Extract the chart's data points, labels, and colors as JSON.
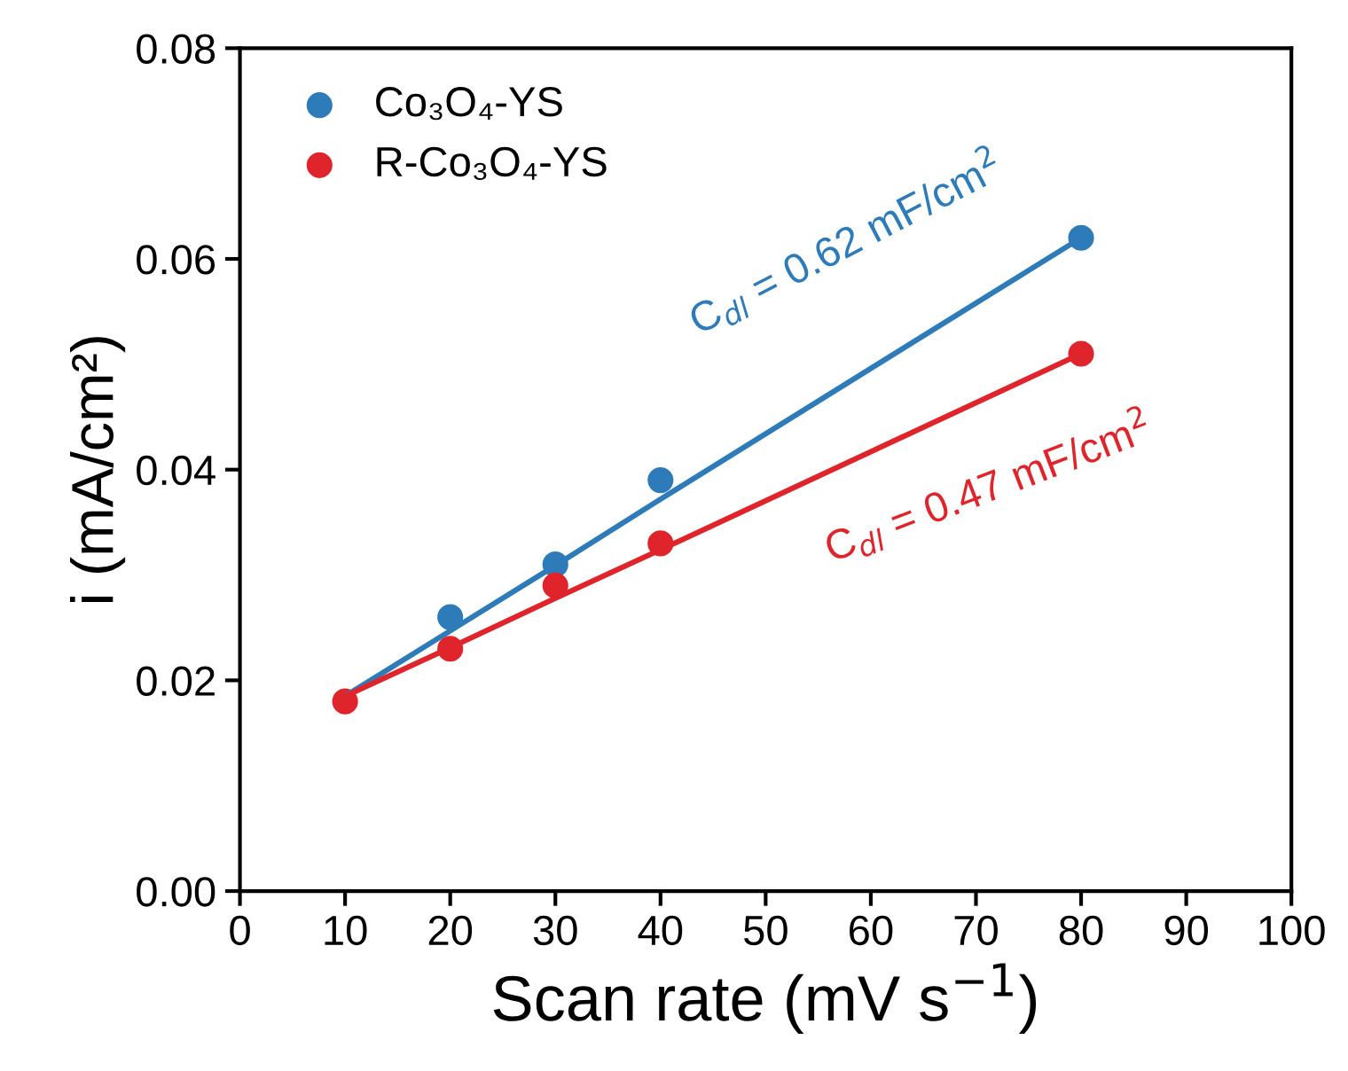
{
  "chart_data": {
    "type": "scatter",
    "xlabel": "Scan rate (mV s$^{−1}$)",
    "ylabel": "i (mA/cm²)",
    "xlim": [
      0,
      100
    ],
    "xticks": [
      0,
      10,
      20,
      30,
      40,
      50,
      60,
      70,
      80,
      90,
      100
    ],
    "ylim": [
      0,
      0.08
    ],
    "yticks": [
      {
        "value": 0,
        "label": "0.00"
      },
      {
        "value": 0.02,
        "label": "0.02"
      },
      {
        "value": 0.04,
        "label": "0.04"
      },
      {
        "value": 0.06,
        "label": "0.06"
      },
      {
        "value": 0.08,
        "label": "0.08"
      }
    ],
    "x": [
      10,
      20,
      30,
      40,
      80
    ],
    "marker": "circle",
    "legend": "top left",
    "grid": false,
    "series": [
      {
        "name": "Co₃O₄-YS",
        "color": "#2e7bb9",
        "values": [
          null,
          0.026,
          0.031,
          0.039,
          0.062
        ]
      },
      {
        "name": "R-Co₃O₄-YS",
        "color": "#e0242c",
        "values": [
          0.018,
          0.023,
          0.029,
          0.033,
          0.051
        ]
      },
      {
        "type": "line",
        "marker": "none",
        "color": "#2e7bb9",
        "values": [
          0.0185,
          0.0247,
          0.0309,
          0.0372,
          0.062
        ]
      },
      {
        "type": "line",
        "marker": "none",
        "color": "#e0242c",
        "values": [
          0.0185,
          0.0231,
          0.0278,
          0.0324,
          0.051
        ]
      }
    ],
    "annotations": [
      "C$_{dl}$ = 0.62 mF/cm$^{2}$",
      "C$_{dl}$ = 0.47 mF/cm$^{2}$"
    ]
  }
}
